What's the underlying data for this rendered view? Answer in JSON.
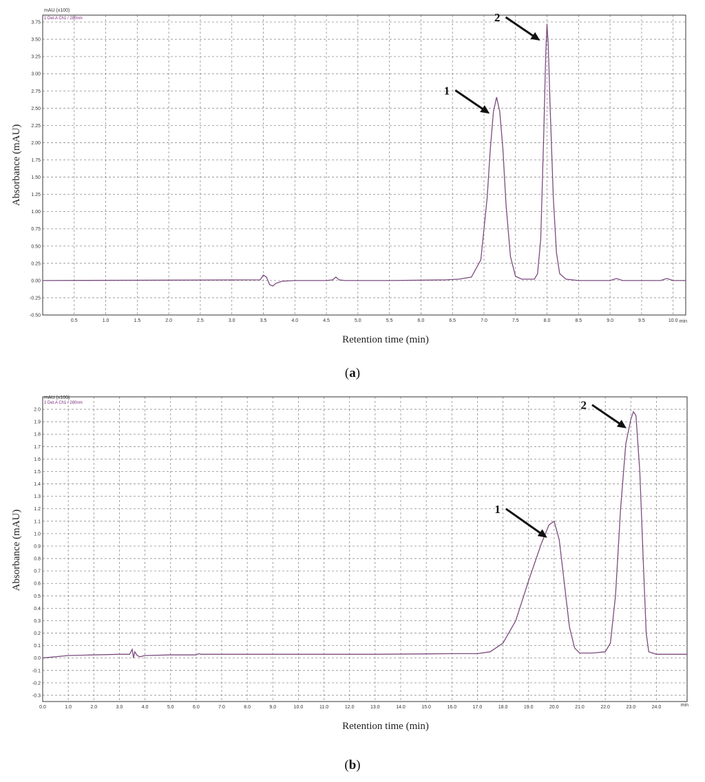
{
  "chart_data": [
    {
      "type": "line",
      "panel_caption": "a",
      "xlabel": "Retention time (min)",
      "ylabel": "Absorbance (mAU)",
      "x_unit_label": "min",
      "y_unit_label": "mAU (x100)",
      "legend_text": "1 Det.A Ch1 / 280nm",
      "xlim": [
        0,
        10.2
      ],
      "ylim": [
        -0.5,
        3.85
      ],
      "xticks": [
        0.5,
        1.0,
        1.5,
        2.0,
        2.5,
        3.0,
        3.5,
        4.0,
        4.5,
        5.0,
        5.5,
        6.0,
        6.5,
        7.0,
        7.5,
        8.0,
        8.5,
        9.0,
        9.5,
        10.0
      ],
      "xtick_labels": [
        "0.5",
        "1.0",
        "1.5",
        "2.0",
        "2.5",
        "3.0",
        "3.5",
        "4.0",
        "4.5",
        "5.0",
        "5.5",
        "6.0",
        "6.5",
        "7.0",
        "7.5",
        "8.0",
        "8.5",
        "9.0",
        "9.5",
        "10.0"
      ],
      "yticks": [
        -0.5,
        -0.25,
        0.0,
        0.25,
        0.5,
        0.75,
        1.0,
        1.25,
        1.5,
        1.75,
        2.0,
        2.25,
        2.5,
        2.75,
        3.0,
        3.25,
        3.5,
        3.75
      ],
      "ytick_labels": [
        "-0.50",
        "-0.25",
        "0.00",
        "0.25",
        "0.50",
        "0.75",
        "1.00",
        "1.25",
        "1.50",
        "1.75",
        "2.00",
        "2.25",
        "2.50",
        "2.75",
        "3.00",
        "3.25",
        "3.50",
        "3.75"
      ],
      "grid": true,
      "series": [
        {
          "x": [
            0.0,
            3.45,
            3.5,
            3.55,
            3.6,
            3.65,
            3.7,
            3.8,
            4.0,
            4.5,
            4.6,
            4.65,
            4.7,
            4.8,
            5.5,
            6.4,
            6.6,
            6.8,
            6.95,
            7.05,
            7.1,
            7.15,
            7.2,
            7.25,
            7.3,
            7.35,
            7.42,
            7.5,
            7.6,
            7.8,
            7.85,
            7.9,
            7.95,
            7.98,
            8.0,
            8.02,
            8.05,
            8.1,
            8.15,
            8.2,
            8.3,
            8.5,
            9.0,
            9.1,
            9.2,
            9.8,
            9.9,
            10.0,
            10.2
          ],
          "y": [
            0.0,
            0.01,
            0.08,
            0.05,
            -0.06,
            -0.08,
            -0.04,
            -0.01,
            0.0,
            0.0,
            0.01,
            0.05,
            0.01,
            0.0,
            0.0,
            0.01,
            0.02,
            0.05,
            0.3,
            1.2,
            1.9,
            2.45,
            2.66,
            2.45,
            1.9,
            1.1,
            0.35,
            0.06,
            0.02,
            0.02,
            0.1,
            0.6,
            2.2,
            3.3,
            3.72,
            3.4,
            2.5,
            1.2,
            0.4,
            0.1,
            0.02,
            0.0,
            0.0,
            0.03,
            0.0,
            0.0,
            0.03,
            0.0,
            0.0
          ]
        }
      ],
      "peak_labels": [
        {
          "text": "1",
          "x": 7.2,
          "y": 2.66
        },
        {
          "text": "2",
          "x": 8.0,
          "y": 3.72
        }
      ]
    },
    {
      "type": "line",
      "panel_caption": "b",
      "xlabel": "Retention time (min)",
      "ylabel": "Absorbance (mAU)",
      "x_unit_label": "min",
      "y_unit_label": "mAU (x100)",
      "legend_text": "1 Det.A Ch1 / 280nm",
      "xlim": [
        0,
        25.2
      ],
      "ylim": [
        -0.35,
        2.1
      ],
      "xticks": [
        0.0,
        1.0,
        2.0,
        3.0,
        4.0,
        5.0,
        6.0,
        7.0,
        8.0,
        9.0,
        10.0,
        11.0,
        12.0,
        13.0,
        14.0,
        15.0,
        16.0,
        17.0,
        18.0,
        19.0,
        20.0,
        21.0,
        22.0,
        23.0,
        24.0
      ],
      "xtick_labels": [
        "0.0",
        "1.0",
        "2.0",
        "3.0",
        "4.0",
        "5.0",
        "6.0",
        "7.0",
        "8.0",
        "9.0",
        "10.0",
        "11.0",
        "12.0",
        "13.0",
        "14.0",
        "15.0",
        "16.0",
        "17.0",
        "18.0",
        "19.0",
        "20.0",
        "21.0",
        "22.0",
        "23.0",
        "24.0"
      ],
      "yticks": [
        -0.3,
        -0.2,
        -0.1,
        0.0,
        0.1,
        0.2,
        0.3,
        0.4,
        0.5,
        0.6,
        0.7,
        0.8,
        0.9,
        1.0,
        1.1,
        1.2,
        1.3,
        1.4,
        1.5,
        1.6,
        1.7,
        1.8,
        1.9,
        2.0
      ],
      "ytick_labels": [
        "-0.3",
        "-0.2",
        "-0.1",
        "0.0",
        "0.1",
        "0.2",
        "0.3",
        "0.4",
        "0.5",
        "0.6",
        "0.7",
        "0.8",
        "0.9",
        "1.0",
        "1.1",
        "1.2",
        "1.3",
        "1.4",
        "1.5",
        "1.6",
        "1.7",
        "1.8",
        "1.9",
        "2.0"
      ],
      "grid": true,
      "series": [
        {
          "x": [
            0.0,
            1.0,
            2.0,
            3.0,
            3.4,
            3.5,
            3.55,
            3.6,
            3.7,
            3.8,
            4.0,
            5.0,
            6.0,
            6.1,
            6.2,
            7.0,
            10.0,
            13.0,
            16.0,
            17.0,
            17.5,
            18.0,
            18.5,
            19.0,
            19.5,
            19.8,
            20.0,
            20.2,
            20.4,
            20.6,
            20.8,
            21.0,
            21.5,
            22.0,
            22.2,
            22.4,
            22.6,
            22.8,
            23.0,
            23.1,
            23.2,
            23.35,
            23.5,
            23.6,
            23.7,
            24.0,
            25.2
          ],
          "y": [
            0.0,
            0.02,
            0.025,
            0.03,
            0.03,
            0.07,
            0.0,
            0.05,
            0.02,
            0.01,
            0.02,
            0.025,
            0.025,
            0.035,
            0.03,
            0.03,
            0.03,
            0.03,
            0.035,
            0.035,
            0.05,
            0.12,
            0.3,
            0.62,
            0.92,
            1.07,
            1.1,
            0.95,
            0.6,
            0.25,
            0.08,
            0.04,
            0.04,
            0.05,
            0.12,
            0.5,
            1.2,
            1.72,
            1.92,
            1.98,
            1.95,
            1.5,
            0.7,
            0.2,
            0.05,
            0.03,
            0.03
          ]
        }
      ],
      "peak_labels": [
        {
          "text": "1",
          "x": 20.0,
          "y": 1.1
        },
        {
          "text": "2",
          "x": 23.1,
          "y": 1.98
        }
      ]
    }
  ]
}
